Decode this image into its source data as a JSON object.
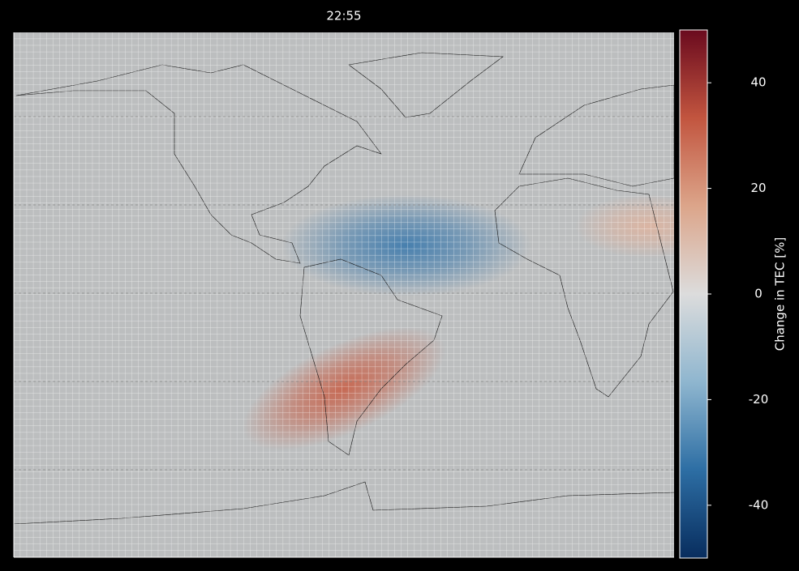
{
  "title": "22:55",
  "colorbar": {
    "label": "Change in TEC [%]",
    "lim": [
      -50,
      50
    ],
    "ticks": [
      -40,
      -20,
      0,
      20,
      40
    ],
    "colors": [
      "#082d5e",
      "#2d6ea4",
      "#8fb6cf",
      "#dcdcdc",
      "#dca58a",
      "#c2553f",
      "#6a0a1e"
    ]
  },
  "anomalies": [
    {
      "lon": -23,
      "lat": 18,
      "lon_radius": 34,
      "lat_radius": 16,
      "value": -30
    },
    {
      "lon": -40,
      "lat": -27,
      "lon_radius": 30,
      "lat_radius": 14,
      "value": 30
    },
    {
      "lon": 43,
      "lat": 24,
      "lon_radius": 20,
      "lat_radius": 10,
      "value": 12
    }
  ]
}
